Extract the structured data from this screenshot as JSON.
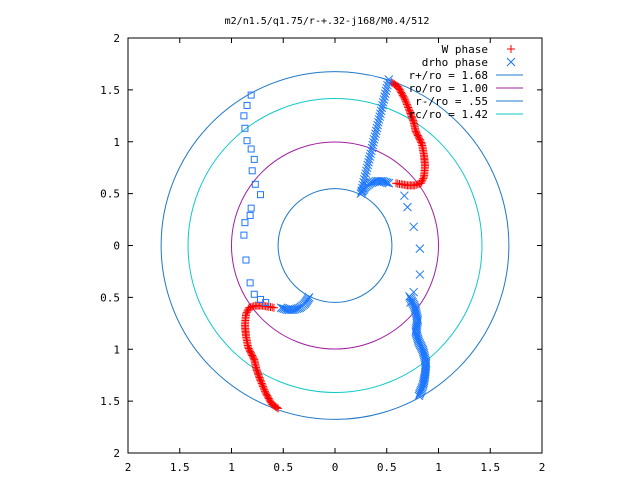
{
  "chart_data": {
    "type": "scatter",
    "title": "m2/n1.5/q1.75/r-+.32-j168/M0.4/512",
    "xlabel": "",
    "ylabel": "",
    "xlim": [
      -2,
      2
    ],
    "ylim": [
      -2,
      2
    ],
    "x_ticks": [
      -2,
      -1.5,
      -1,
      -0.5,
      0,
      0.5,
      1,
      1.5,
      2
    ],
    "y_ticks": [
      -2,
      -1.5,
      -1,
      -0.5,
      0,
      0.5,
      1,
      1.5,
      2
    ],
    "x_tick_labels": [
      "2",
      "1.5",
      "1",
      "0.5",
      "0",
      "0.5",
      "1",
      "1.5",
      "2"
    ],
    "y_tick_labels": [
      "2",
      "1.5",
      "1",
      "0.5",
      "0",
      "0.5",
      "1",
      "1.5",
      "2"
    ],
    "grid": false,
    "legend_position": "top-right",
    "series": [
      {
        "name": "W phase",
        "kind": "points",
        "marker": "+",
        "color": "#ff0000",
        "branches": [
          {
            "x": [
              0.55,
              0.61,
              0.67,
              0.72,
              0.76,
              0.78,
              0.84,
              0.86,
              0.87,
              0.86,
              0.83,
              0.77,
              0.7,
              0.64,
              0.59
            ],
            "y": [
              1.57,
              1.53,
              1.42,
              1.3,
              1.19,
              1.1,
              0.98,
              0.87,
              0.77,
              0.66,
              0.6,
              0.58,
              0.58,
              0.59,
              0.6
            ]
          },
          {
            "x": [
              -0.55,
              -0.61,
              -0.67,
              -0.72,
              -0.76,
              -0.78,
              -0.84,
              -0.86,
              -0.87,
              -0.86,
              -0.83,
              -0.77,
              -0.7,
              -0.64,
              -0.59
            ],
            "y": [
              -1.57,
              -1.53,
              -1.42,
              -1.3,
              -1.19,
              -1.1,
              -0.98,
              -0.87,
              -0.77,
              -0.66,
              -0.6,
              -0.58,
              -0.58,
              -0.59,
              -0.6
            ]
          }
        ]
      },
      {
        "name": "drho phase",
        "kind": "points",
        "marker": "x",
        "color": "#1e78ff",
        "branches": [
          {
            "x": [
              0.52,
              0.25,
              0.29,
              0.34,
              0.4,
              0.46,
              0.52
            ],
            "y": [
              1.6,
              0.5,
              0.56,
              0.6,
              0.62,
              0.62,
              0.6
            ]
          },
          {
            "x": [
              0.67,
              0.7,
              0.76,
              0.82,
              0.82,
              0.76,
              0.73
            ],
            "y": [
              0.48,
              0.37,
              0.18,
              -0.03,
              -0.28,
              -0.45,
              -0.55
            ]
          },
          {
            "x": [
              0.72,
              0.77,
              0.8,
              0.78,
              0.81,
              0.85,
              0.88,
              0.87,
              0.85,
              0.81
            ],
            "y": [
              -0.49,
              -0.59,
              -0.72,
              -0.83,
              -0.93,
              -1.01,
              -1.13,
              -1.25,
              -1.35,
              -1.45
            ]
          },
          {
            "x": [
              -0.25,
              -0.29,
              -0.34,
              -0.4,
              -0.46,
              -0.52
            ],
            "y": [
              -0.5,
              -0.56,
              -0.6,
              -0.62,
              -0.62,
              -0.6
            ]
          }
        ]
      },
      {
        "name": "",
        "kind": "points",
        "marker": "square",
        "color": "#1e78ff",
        "branches": [
          {
            "x": [
              -0.81,
              -0.85,
              -0.88,
              -0.87,
              -0.85,
              -0.81,
              -0.78,
              -0.8,
              -0.77,
              -0.72
            ],
            "y": [
              1.45,
              1.35,
              1.25,
              1.13,
              1.01,
              0.93,
              0.83,
              0.72,
              0.59,
              0.49
            ]
          },
          {
            "x": [
              -0.81,
              -0.82,
              -0.87,
              -0.88,
              -0.86,
              -0.82,
              -0.78,
              -0.72,
              -0.67
            ],
            "y": [
              0.36,
              0.29,
              0.22,
              0.1,
              -0.14,
              -0.36,
              -0.47,
              -0.52,
              -0.55
            ]
          }
        ]
      },
      {
        "name": "r+/ro = 1.68",
        "kind": "circle",
        "radius": 1.68,
        "color": "#1e78c8"
      },
      {
        "name": "ro/ro = 1.00",
        "kind": "circle",
        "radius": 1.0,
        "color": "#a020a0"
      },
      {
        "name": "r-/ro = .55",
        "kind": "circle",
        "radius": 0.55,
        "color": "#1e78c8"
      },
      {
        "name": "rc/ro = 1.42",
        "kind": "circle",
        "radius": 1.42,
        "color": "#10c8c8"
      }
    ]
  }
}
